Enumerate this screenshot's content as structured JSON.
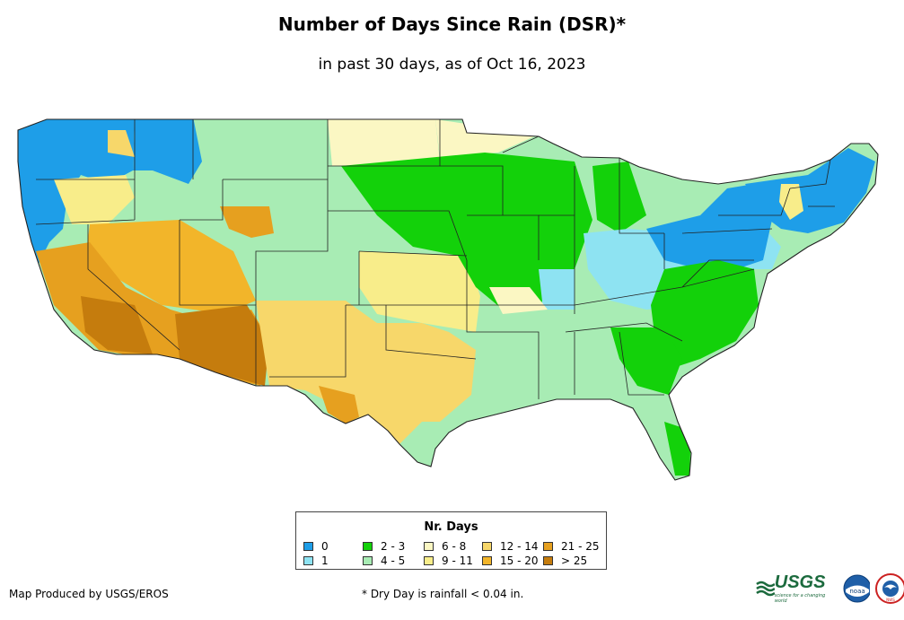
{
  "header": {
    "title": "Number of Days Since Rain (DSR)*",
    "subtitle": "in past 30 days, as of Oct 16, 2023"
  },
  "legend": {
    "title": "Nr. Days",
    "items": [
      {
        "label": "0",
        "color": "#1e9ee8"
      },
      {
        "label": "1",
        "color": "#8ee3f2"
      },
      {
        "label": "2 - 3",
        "color": "#13d10a"
      },
      {
        "label": "4 - 5",
        "color": "#a8ecb4"
      },
      {
        "label": "6 - 8",
        "color": "#fbf7c3"
      },
      {
        "label": "9 - 11",
        "color": "#f8ed8a"
      },
      {
        "label": "12 - 14",
        "color": "#f7d76a"
      },
      {
        "label": "15 - 20",
        "color": "#f2b52a"
      },
      {
        "label": "21 - 25",
        "color": "#e6a01f"
      },
      {
        "label": "> 25",
        "color": "#c57c0d"
      }
    ]
  },
  "footer": {
    "credit": "Map Produced by USGS/EROS",
    "footnote": "* Dry Day is rainfall < 0.04 in."
  },
  "logos": {
    "usgs": "USGS",
    "usgs_tagline": "science for a changing world",
    "noaa": "noaa",
    "nws": "NWS"
  }
}
